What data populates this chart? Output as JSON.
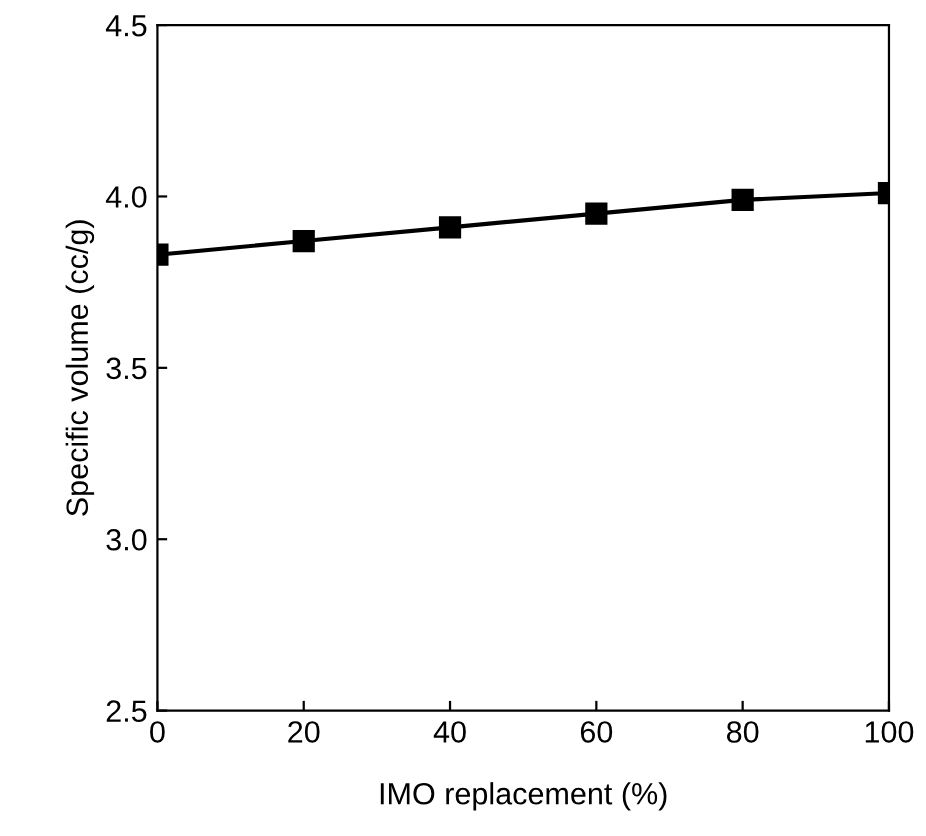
{
  "chart_data": {
    "type": "line",
    "xlabel": "IMO replacement (%)",
    "ylabel": "Specific volume (cc/g)",
    "x": [
      0,
      20,
      40,
      60,
      80,
      100
    ],
    "series": [
      {
        "color": "#000000",
        "values": [
          3.83,
          3.87,
          3.91,
          3.95,
          3.99,
          4.01
        ]
      }
    ],
    "xlim": [
      0,
      100
    ],
    "ylim": [
      2.5,
      4.5
    ],
    "xticks": [
      0,
      20,
      40,
      60,
      80,
      100
    ],
    "yticks": [
      2.5,
      {
        "value": 3,
        "label": "3.0"
      },
      3.5,
      {
        "value": 4,
        "label": "4.0"
      },
      4.5
    ],
    "marker": "square",
    "line_style": "solid",
    "grid": false,
    "legend": false
  }
}
